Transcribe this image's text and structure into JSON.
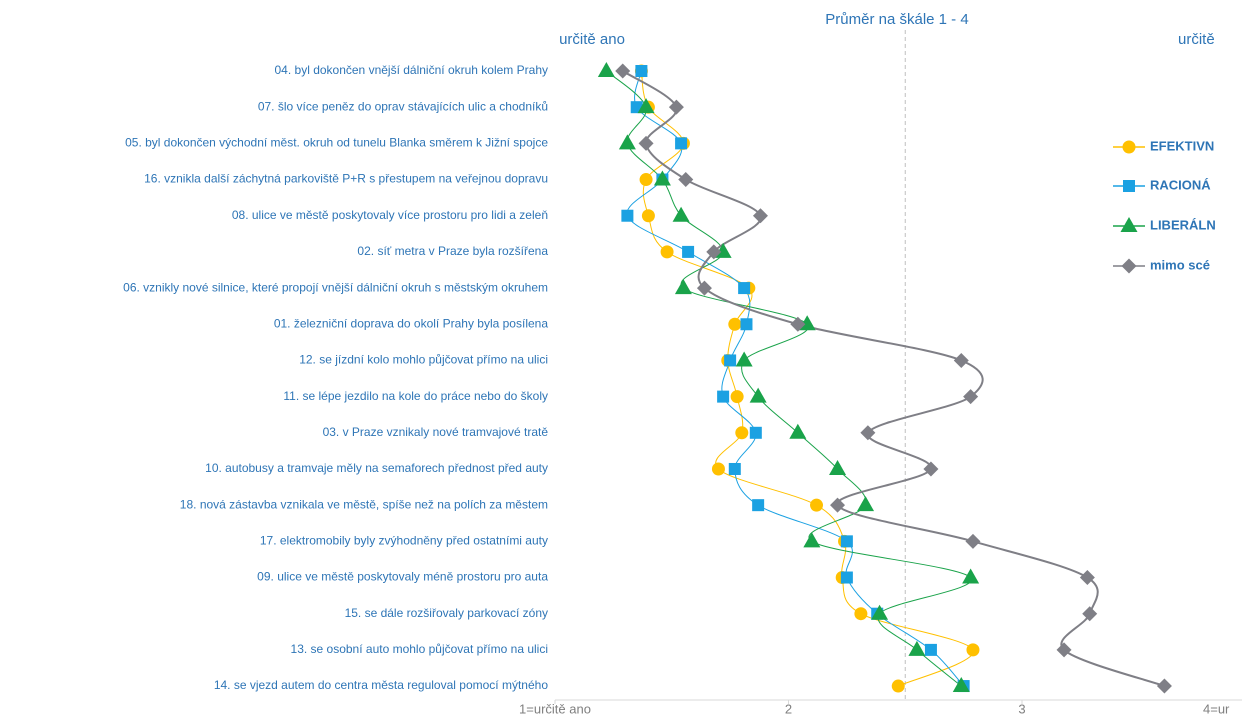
{
  "chart_data": {
    "type": "line",
    "orientation": "horizontal",
    "title": "Průměr na škále 1 - 4",
    "left_label": "určitě ano",
    "right_label": "určitě",
    "categories": [
      "04. byl dokončen vnější dálniční okruh kolem Prahy",
      "07. šlo více peněz do oprav stávajících ulic a chodníků",
      "05. byl dokončen východní měst. okruh od tunelu Blanka směrem k Jižní spojce",
      "16. vznikla další záchytná parkoviště P+R s přestupem na veřejnou dopravu",
      "08. ulice ve městě poskytovaly více prostoru pro lidi a zeleň",
      "02. síť metra v Praze byla rozšířena",
      "06. vznikly nové silnice, které propojí vnější dálniční okruh s městským okruhem",
      "01. železniční doprava do okolí Prahy byla posílena",
      "12. se jízdní kolo mohlo půjčovat přímo na ulici",
      "11. se lépe jezdilo na kole do práce nebo do školy",
      "03. v Praze vznikaly nové tramvajové tratě",
      "10. autobusy a tramvaje měly na semaforech přednost před auty",
      "18. nová zástavba vznikala ve městě, spíše než na polích za městem",
      "17. elektromobily byly zvýhodněny před ostatními auty",
      "09. ulice ve městě poskytovaly méně prostoru pro auta",
      "15. se dále rozšiřovaly parkovací zóny",
      "13. se osobní auto mohlo půjčovat přímo na ulici",
      "14. se vjezd autem do centra města reguloval pomocí mýtného"
    ],
    "series": [
      {
        "name": "EFEKTIVN",
        "color": "#ffc000",
        "marker": "circle",
        "values": [
          1.37,
          1.4,
          1.55,
          1.39,
          1.4,
          1.48,
          1.83,
          1.77,
          1.74,
          1.78,
          1.8,
          1.7,
          2.12,
          2.24,
          2.23,
          2.31,
          2.79,
          2.47
        ]
      },
      {
        "name": "RACIONÁ",
        "color": "#1ba1e2",
        "marker": "square",
        "values": [
          1.37,
          1.35,
          1.54,
          1.46,
          1.31,
          1.57,
          1.81,
          1.82,
          1.75,
          1.72,
          1.86,
          1.77,
          1.87,
          2.25,
          2.25,
          2.38,
          2.61,
          2.75
        ]
      },
      {
        "name": "LIBERÁLN",
        "color": "#1aa34a",
        "marker": "triangle",
        "values": [
          1.22,
          1.39,
          1.31,
          1.46,
          1.54,
          1.72,
          1.55,
          2.08,
          1.81,
          1.87,
          2.04,
          2.21,
          2.33,
          2.1,
          2.78,
          2.39,
          2.55,
          2.74
        ]
      },
      {
        "name": "mimo scé",
        "color": "#7f7f86",
        "marker": "diamond",
        "values": [
          1.29,
          1.52,
          1.39,
          1.56,
          1.88,
          1.68,
          1.64,
          2.04,
          2.74,
          2.78,
          2.34,
          2.61,
          2.21,
          2.79,
          3.28,
          3.29,
          3.18,
          3.61
        ]
      }
    ],
    "xlim": [
      1,
      4
    ],
    "xticks": [
      {
        "value": 1,
        "label": "1=určitě ano"
      },
      2,
      3,
      {
        "value": 4,
        "label": "4=ur"
      }
    ],
    "midline": 2.5,
    "legend": "right"
  }
}
